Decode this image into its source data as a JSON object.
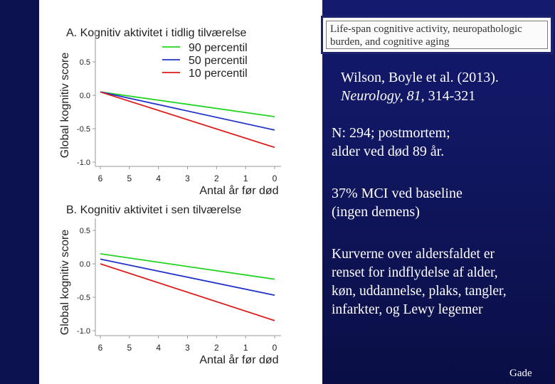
{
  "slide": {
    "paper_title": "Life-span cognitive activity, neuropathologic burden, and cognitive aging",
    "citation_authors": "Wilson, Boyle et al. (2013).",
    "citation_journal": "Neurology, 81",
    "citation_pages": ", 314-321",
    "sample_line1": "N: 294; postmortem;",
    "sample_line2": "alder ved død 89 år.",
    "baseline_line1": "37% MCI ved baseline",
    "baseline_line2": "(ingen demens)",
    "adjusted_line1": "Kurverne over aldersfaldet er",
    "adjusted_line2": "renset for indflydelse af alder,",
    "adjusted_line3": "køn, uddannelse, plaks, tangler,",
    "adjusted_line4": "infarkter, og Lewy legemer",
    "footer": "Gade"
  },
  "colors": {
    "p90": "#22d422",
    "p50": "#2233cc",
    "p10": "#dd1c1c"
  },
  "chart_data": [
    {
      "type": "line",
      "title": "A. Kognitiv aktivitet i tidlig tilværelse",
      "xlabel": "Antal år før død",
      "ylabel": "Global kognitiv score",
      "x_ticks": [
        "6",
        "5",
        "4",
        "3",
        "2",
        "1",
        "0"
      ],
      "y_ticks": [
        "0.5",
        "0.0",
        "-0.5",
        "-1.0"
      ],
      "xlim": [
        6,
        0
      ],
      "ylim": [
        -1.0,
        0.6
      ],
      "legend": "top-right",
      "series": [
        {
          "name": "90 percentil",
          "color_key": "p90",
          "x": [
            6,
            0
          ],
          "y": [
            0.05,
            -0.32
          ]
        },
        {
          "name": "50 percentil",
          "color_key": "p50",
          "x": [
            6,
            0
          ],
          "y": [
            0.05,
            -0.52
          ]
        },
        {
          "name": "10 percentil",
          "color_key": "p10",
          "x": [
            6,
            0
          ],
          "y": [
            0.05,
            -0.78
          ]
        }
      ]
    },
    {
      "type": "line",
      "title": "B. Kognitiv aktivitet i sen tilværelse",
      "xlabel": "Antal år før død",
      "ylabel": "Global kognitiv score",
      "x_ticks": [
        "6",
        "5",
        "4",
        "3",
        "2",
        "1",
        "0"
      ],
      "y_ticks": [
        "0.5",
        "0.0",
        "-0.5",
        "-1.0"
      ],
      "xlim": [
        6,
        0
      ],
      "ylim": [
        -1.0,
        0.6
      ],
      "series": [
        {
          "color_key": "p90",
          "x": [
            6,
            0
          ],
          "y": [
            0.15,
            -0.23
          ]
        },
        {
          "color_key": "p50",
          "x": [
            6,
            0
          ],
          "y": [
            0.07,
            -0.47
          ]
        },
        {
          "color_key": "p10",
          "x": [
            6,
            0
          ],
          "y": [
            0.0,
            -0.85
          ]
        }
      ]
    }
  ]
}
